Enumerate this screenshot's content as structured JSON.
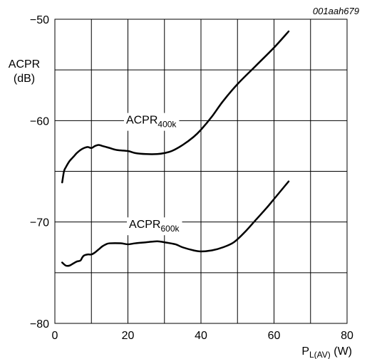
{
  "figure_id": "001aah679",
  "chart_data": {
    "type": "line",
    "title": "",
    "xlabel": {
      "main": "P",
      "sub": "L(AV)",
      "unit": " (W)"
    },
    "ylabel": {
      "line1": "ACPR",
      "line2": "(dB)"
    },
    "xlim": [
      0,
      80
    ],
    "ylim": [
      -80,
      -50
    ],
    "x_ticks": [
      0,
      20,
      40,
      60,
      80
    ],
    "y_ticks": [
      -80,
      -70,
      -60,
      -50
    ],
    "x_tick_labels": [
      "0",
      "20",
      "40",
      "60",
      "80"
    ],
    "y_tick_labels": [
      "−80",
      "−70",
      "−60",
      "−50"
    ],
    "x_grid": [
      0,
      10,
      20,
      30,
      40,
      50,
      60,
      70,
      80
    ],
    "y_grid": [
      -80,
      -75,
      -70,
      -65,
      -60,
      -55,
      -50
    ],
    "grid": true,
    "legend": "none",
    "series": [
      {
        "name": "ACPR400k",
        "label_main": "ACPR",
        "label_sub": "400k",
        "label_at": [
          19.5,
          -60.3
        ],
        "color": "#000000",
        "points": [
          [
            2,
            -66.1
          ],
          [
            2.5,
            -65.0
          ],
          [
            3,
            -64.6
          ],
          [
            4,
            -64.0
          ],
          [
            5,
            -63.6
          ],
          [
            6,
            -63.2
          ],
          [
            7,
            -62.9
          ],
          [
            8,
            -62.7
          ],
          [
            9,
            -62.6
          ],
          [
            10,
            -62.7
          ],
          [
            11,
            -62.5
          ],
          [
            12,
            -62.4
          ],
          [
            13,
            -62.5
          ],
          [
            14,
            -62.6
          ],
          [
            15,
            -62.7
          ],
          [
            17,
            -62.9
          ],
          [
            20,
            -63.0
          ],
          [
            22,
            -63.2
          ],
          [
            25,
            -63.3
          ],
          [
            28,
            -63.3
          ],
          [
            30,
            -63.2
          ],
          [
            32,
            -63.0
          ],
          [
            35,
            -62.4
          ],
          [
            38,
            -61.6
          ],
          [
            40,
            -60.9
          ],
          [
            43,
            -59.6
          ],
          [
            46,
            -58.1
          ],
          [
            50,
            -56.4
          ],
          [
            55,
            -54.6
          ],
          [
            60,
            -52.8
          ],
          [
            64,
            -51.2
          ]
        ]
      },
      {
        "name": "ACPR600k",
        "label_main": "ACPR",
        "label_sub": "600k",
        "label_at": [
          20.3,
          -70.6
        ],
        "color": "#000000",
        "points": [
          [
            2,
            -74.0
          ],
          [
            3,
            -74.3
          ],
          [
            4,
            -74.3
          ],
          [
            5,
            -74.1
          ],
          [
            6,
            -73.9
          ],
          [
            7,
            -73.8
          ],
          [
            7.5,
            -73.5
          ],
          [
            8,
            -73.3
          ],
          [
            9,
            -73.2
          ],
          [
            10,
            -73.2
          ],
          [
            11,
            -73.0
          ],
          [
            12,
            -72.7
          ],
          [
            13,
            -72.4
          ],
          [
            14,
            -72.2
          ],
          [
            15,
            -72.1
          ],
          [
            18,
            -72.1
          ],
          [
            20,
            -72.2
          ],
          [
            22,
            -72.1
          ],
          [
            25,
            -72.0
          ],
          [
            28,
            -71.9
          ],
          [
            30,
            -72.0
          ],
          [
            33,
            -72.2
          ],
          [
            35,
            -72.5
          ],
          [
            38,
            -72.8
          ],
          [
            40,
            -72.9
          ],
          [
            43,
            -72.8
          ],
          [
            46,
            -72.5
          ],
          [
            49,
            -72.0
          ],
          [
            52,
            -71.0
          ],
          [
            55,
            -69.8
          ],
          [
            58,
            -68.6
          ],
          [
            61,
            -67.3
          ],
          [
            64,
            -66.0
          ]
        ]
      }
    ]
  }
}
